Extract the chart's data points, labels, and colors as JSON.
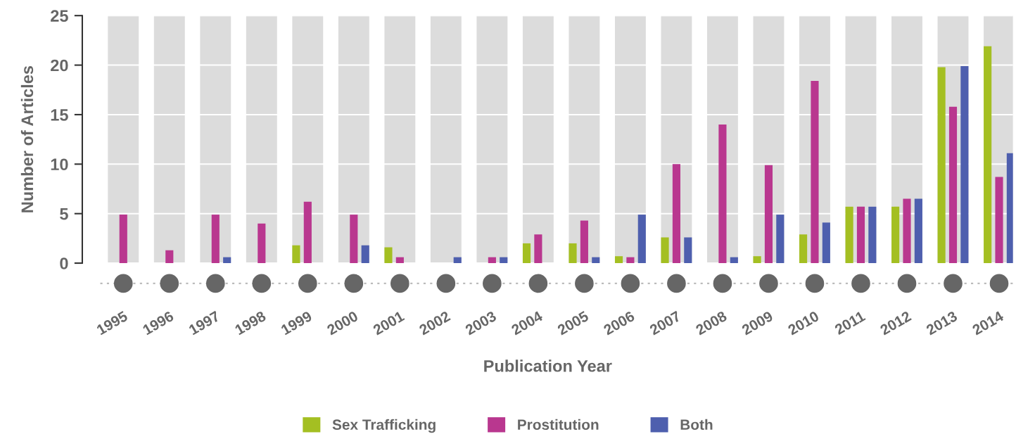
{
  "chart_data": {
    "type": "bar",
    "xlabel": "Publication Year",
    "ylabel": "Number of Articles",
    "categories": [
      "1995",
      "1996",
      "1997",
      "1998",
      "1999",
      "2000",
      "2001",
      "2002",
      "2003",
      "2004",
      "2005",
      "2006",
      "2007",
      "2008",
      "2009",
      "2010",
      "2011",
      "2012",
      "2013",
      "2014"
    ],
    "series": [
      {
        "name": "Sex Trafficking",
        "color": "#a4bf22",
        "values": [
          0,
          0,
          0,
          0,
          1.8,
          0,
          1.6,
          0,
          0,
          2.0,
          2.0,
          0.7,
          2.6,
          0,
          0.7,
          2.9,
          5.7,
          5.7,
          19.8,
          21.9
        ]
      },
      {
        "name": "Prostitution",
        "color": "#b9378f",
        "values": [
          4.9,
          1.3,
          4.9,
          4.0,
          6.2,
          4.9,
          0.6,
          0,
          0.6,
          2.9,
          4.3,
          0.6,
          10.0,
          14.0,
          9.9,
          18.4,
          5.7,
          6.5,
          15.8,
          8.7
        ]
      },
      {
        "name": "Both",
        "color": "#4e5fae",
        "values": [
          0,
          0,
          0.6,
          0,
          0,
          1.8,
          0,
          0.6,
          0.6,
          0,
          0.6,
          4.9,
          2.6,
          0.6,
          4.9,
          4.1,
          5.7,
          6.5,
          19.9,
          11.1
        ]
      }
    ],
    "bands": [
      {
        "axis": "x",
        "from": "1995",
        "to": "1995",
        "color": "#dcdcdc"
      },
      {
        "axis": "x",
        "from": "1996",
        "to": "1996",
        "color": "#dcdcdc"
      },
      {
        "axis": "x",
        "from": "1997",
        "to": "1997",
        "color": "#dcdcdc"
      },
      {
        "axis": "x",
        "from": "1998",
        "to": "1998",
        "color": "#dcdcdc"
      },
      {
        "axis": "x",
        "from": "1999",
        "to": "1999",
        "color": "#dcdcdc"
      },
      {
        "axis": "x",
        "from": "2000",
        "to": "2000",
        "color": "#dcdcdc"
      },
      {
        "axis": "x",
        "from": "2001",
        "to": "2001",
        "color": "#dcdcdc"
      },
      {
        "axis": "x",
        "from": "2002",
        "to": "2002",
        "color": "#dcdcdc"
      },
      {
        "axis": "x",
        "from": "2003",
        "to": "2003",
        "color": "#dcdcdc"
      },
      {
        "axis": "x",
        "from": "2004",
        "to": "2004",
        "color": "#dcdcdc"
      },
      {
        "axis": "x",
        "from": "2005",
        "to": "2005",
        "color": "#dcdcdc"
      },
      {
        "axis": "x",
        "from": "2006",
        "to": "2006",
        "color": "#dcdcdc"
      },
      {
        "axis": "x",
        "from": "2007",
        "to": "2007",
        "color": "#dcdcdc"
      },
      {
        "axis": "x",
        "from": "2008",
        "to": "2008",
        "color": "#dcdcdc"
      },
      {
        "axis": "x",
        "from": "2009",
        "to": "2009",
        "color": "#dcdcdc"
      },
      {
        "axis": "x",
        "from": "2010",
        "to": "2010",
        "color": "#dcdcdc"
      },
      {
        "axis": "x",
        "from": "2011",
        "to": "2011",
        "color": "#dcdcdc"
      },
      {
        "axis": "x",
        "from": "2012",
        "to": "2012",
        "color": "#dcdcdc"
      },
      {
        "axis": "x",
        "from": "2013",
        "to": "2013",
        "color": "#dcdcdc"
      },
      {
        "axis": "x",
        "from": "2014",
        "to": "2014",
        "color": "#dcdcdc"
      }
    ],
    "ylim": [
      0,
      25
    ],
    "yticks": [
      0,
      5,
      10,
      15,
      20,
      25
    ],
    "grid": "y",
    "legend": "bottom"
  }
}
